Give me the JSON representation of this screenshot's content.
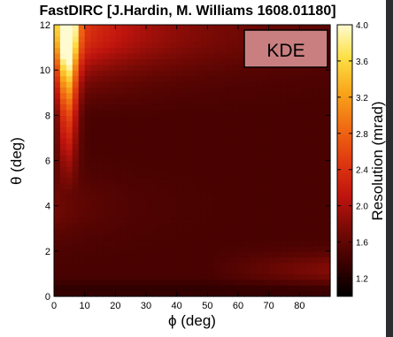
{
  "chart_data": {
    "type": "heatmap",
    "title": "FastDIRC [J.Hardin, M. Williams 1608.01180]",
    "xlabel": "ϕ (deg)",
    "ylabel": "θ (deg)",
    "colorbar_label": "Resolution (mrad)",
    "xlim": [
      0,
      90
    ],
    "ylim": [
      0,
      12
    ],
    "clim": [
      1.0,
      4.0
    ],
    "x_ticks": [
      0,
      10,
      20,
      30,
      40,
      50,
      60,
      70,
      80
    ],
    "y_ticks": [
      0,
      2,
      4,
      6,
      8,
      10,
      12
    ],
    "colorbar_ticks": [
      "1.2",
      "1.6",
      "2.0",
      "2.4",
      "2.8",
      "3.2",
      "3.6",
      "4.0"
    ],
    "annotation": "KDE",
    "grid": false,
    "colormap": "hot (black → dark red → red → orange → yellow → pale yellow)",
    "approx_trend": {
      "description": "Resolution highest (~3.5–4.0 mrad) at small ϕ (≈2–8 deg) and large θ (≈7–12 deg); moderate (~2.4–2.8) band extending to larger ϕ at θ≈10–12; lowest (~1.2–1.5) at large ϕ and θ≈2–6; small-θ rows (<1) around 1.6–2.0"
    },
    "sample_values": [
      {
        "phi": 5,
        "theta": 11.5,
        "resolution": 3.9
      },
      {
        "phi": 5,
        "theta": 9,
        "resolution": 3.6
      },
      {
        "phi": 7,
        "theta": 6,
        "resolution": 2.8
      },
      {
        "phi": 20,
        "theta": 10,
        "resolution": 2.6
      },
      {
        "phi": 40,
        "theta": 11,
        "resolution": 2.2
      },
      {
        "phi": 40,
        "theta": 6,
        "resolution": 1.7
      },
      {
        "phi": 70,
        "theta": 4,
        "resolution": 1.4
      },
      {
        "phi": 80,
        "theta": 1,
        "resolution": 1.7
      },
      {
        "phi": 30,
        "theta": 0.3,
        "resolution": 1.3
      }
    ]
  }
}
